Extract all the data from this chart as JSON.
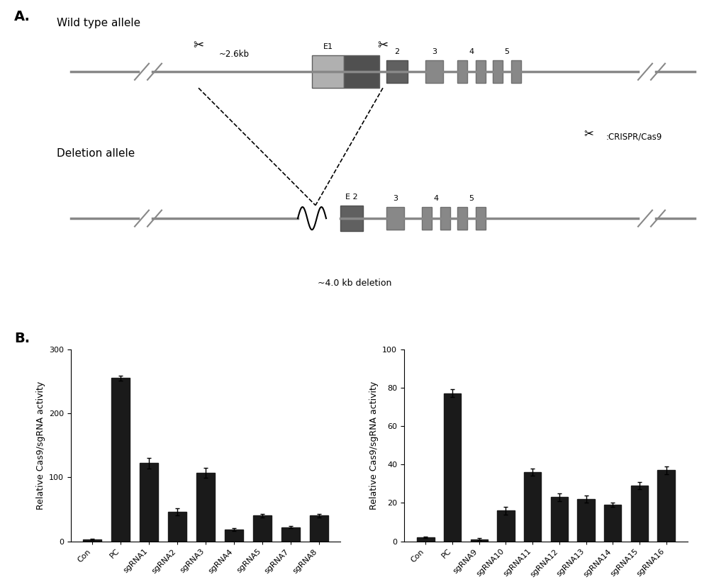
{
  "panel_a": {
    "label_a": "A.",
    "label_b": "B.",
    "wild_type_label": "Wild type allele",
    "deletion_label": "Deletion allele",
    "distance_label": "~2.6kb",
    "deletion_size_label": "~4.0 kb deletion",
    "crispr_label": ":CRISPR/Cas9"
  },
  "panel_b_left": {
    "categories": [
      "Con",
      "PC",
      "sgRNA1",
      "sgRNA2",
      "sgRNA3",
      "sgRNA4",
      "sgRNA5",
      "sgRNA7",
      "sgRNA8"
    ],
    "values": [
      3,
      255,
      122,
      46,
      107,
      18,
      40,
      22,
      40
    ],
    "errors": [
      1,
      4,
      8,
      5,
      8,
      2,
      3,
      2,
      3
    ],
    "ylabel": "Relative Cas9/sgRNA activity",
    "ylim": [
      0,
      300
    ],
    "yticks": [
      0,
      100,
      200,
      300
    ]
  },
  "panel_b_right": {
    "categories": [
      "Con",
      "PC",
      "sgRNA9",
      "sgRNA10",
      "sgRNA11",
      "sgRNA12",
      "sgRNA13",
      "sgRNA14",
      "sgRNA15",
      "sgRNA16"
    ],
    "values": [
      2,
      77,
      1,
      16,
      36,
      23,
      22,
      19,
      29,
      37
    ],
    "errors": [
      0.5,
      2,
      0.5,
      2,
      2,
      2,
      2,
      1,
      2,
      2
    ],
    "ylabel": "Relative Cas9/sgRNA activity",
    "ylim": [
      0,
      100
    ],
    "yticks": [
      0,
      20,
      40,
      60,
      80,
      100
    ]
  },
  "bar_color": "#1a1a1a",
  "background_color": "#ffffff",
  "figure_width": 10.0,
  "figure_height": 8.21
}
